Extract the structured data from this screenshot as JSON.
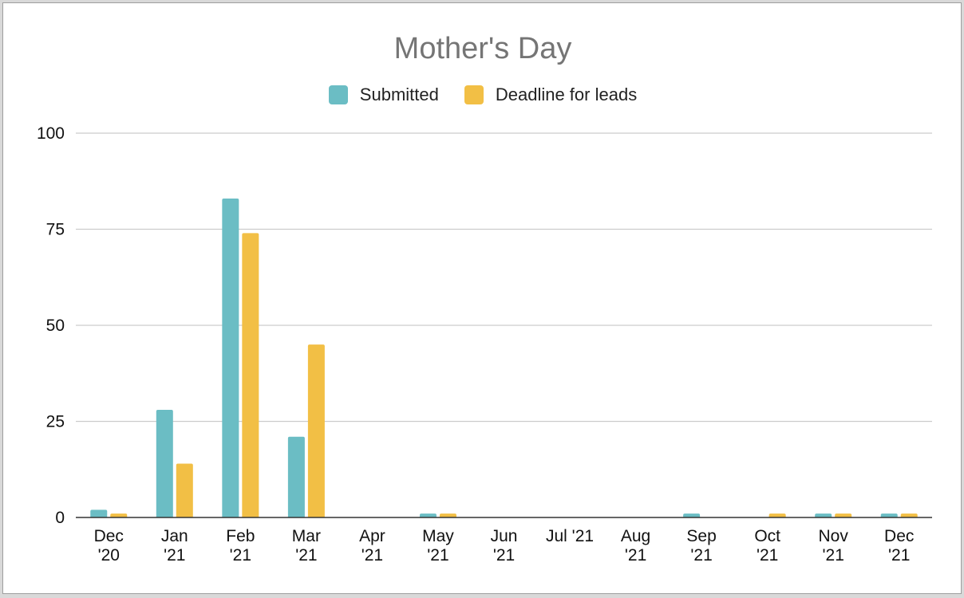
{
  "chart_data": {
    "type": "bar",
    "title": "Mother's Day",
    "xlabel": "",
    "ylabel": "",
    "ylim": [
      0,
      100
    ],
    "yticks": [
      0,
      25,
      50,
      75,
      100
    ],
    "grid": true,
    "legend_position": "top-center",
    "categories": [
      [
        "Dec",
        "'20"
      ],
      [
        "Jan",
        "'21"
      ],
      [
        "Feb",
        "'21"
      ],
      [
        "Mar",
        "'21"
      ],
      [
        "Apr",
        "'21"
      ],
      [
        "May",
        "'21"
      ],
      [
        "Jun",
        "'21"
      ],
      [
        "Jul '21"
      ],
      [
        "Aug",
        "'21"
      ],
      [
        "Sep",
        "'21"
      ],
      [
        "Oct",
        "'21"
      ],
      [
        "Nov",
        "'21"
      ],
      [
        "Dec",
        "'21"
      ]
    ],
    "series": [
      {
        "name": "Submitted",
        "color": "#6bbdc4",
        "values": [
          2,
          28,
          83,
          21,
          0,
          1,
          0,
          0,
          0,
          1,
          0,
          1,
          1
        ]
      },
      {
        "name": "Deadline for leads",
        "color": "#f2bf45",
        "values": [
          1,
          14,
          74,
          45,
          0,
          1,
          0,
          0,
          0,
          0,
          1,
          1,
          1
        ]
      }
    ]
  }
}
